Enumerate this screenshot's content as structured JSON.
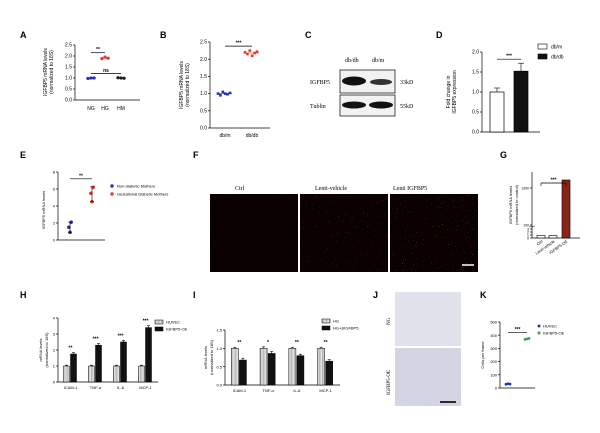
{
  "panel_labels": [
    "A",
    "B",
    "C",
    "D",
    "E",
    "F",
    "G",
    "H",
    "I",
    "J",
    "K"
  ],
  "chart_data": [
    {
      "panel": "A",
      "type": "scatter",
      "ylabel": [
        "IGFBP5 mRNA levels",
        "(normalized to 18S)"
      ],
      "categories": [
        "NG",
        "HG",
        "HM"
      ],
      "yticks": [
        "0.0",
        "0.5",
        "1.0",
        "1.5",
        "2.0",
        "2.5"
      ],
      "ylim": [
        0,
        2.5
      ],
      "series": [
        {
          "values": [
            [
              0.98,
              1.0,
              1.0
            ],
            [
              1.88,
              1.95,
              1.9
            ],
            [
              1.01,
              1.0,
              0.99
            ]
          ]
        }
      ],
      "colors": [
        "#2233bb",
        "#e23b2a",
        "#222222"
      ],
      "means": [
        1.0,
        1.91,
        1.0
      ],
      "significance": [
        {
          "label": "**",
          "from": 0,
          "to": 1,
          "y": 2.15
        },
        {
          "label": "ns",
          "from": 0,
          "to": 2,
          "y": 1.2
        }
      ]
    },
    {
      "panel": "B",
      "type": "scatter",
      "ylabel": [
        "IGFBP5 mRNA levels",
        "(normalized to 18S)"
      ],
      "categories": [
        "db/m",
        "db/db"
      ],
      "yticks": [
        "0.0",
        "0.5",
        "1.0",
        "1.5",
        "2.0",
        "2.5"
      ],
      "ylim": [
        0,
        2.5
      ],
      "series": [
        {
          "values": [
            [
              1.0,
              0.95,
              1.05,
              1.0,
              0.98,
              1.02
            ],
            [
              2.2,
              2.15,
              2.25,
              2.1,
              2.18,
              2.22
            ]
          ]
        }
      ],
      "colors": [
        "#2233bb",
        "#e23b2a"
      ],
      "means": [
        1.0,
        2.18
      ],
      "significance": [
        {
          "label": "***",
          "from": 0,
          "to": 1,
          "y": 2.38
        }
      ]
    },
    {
      "panel": "D",
      "type": "bar",
      "ylabel": [
        "Fold change in",
        "IGFBP5 expression"
      ],
      "categories": [
        "db/m",
        "db/db"
      ],
      "values": [
        1.0,
        1.52
      ],
      "errors": [
        0.1,
        0.2
      ],
      "yticks": [
        "0.0",
        "0.5",
        "1.0",
        "1.5",
        "2.0"
      ],
      "ylim": [
        0,
        2.0
      ],
      "legend": [
        "db/m",
        "db/db"
      ],
      "significance": [
        {
          "label": "***",
          "from": 0,
          "to": 1,
          "y": 1.82
        }
      ]
    },
    {
      "panel": "E",
      "type": "scatter",
      "ylabel": "IGFBP5 mRNA levels",
      "yticks": [
        "0",
        "2",
        "4",
        "6",
        "8"
      ],
      "ylim": [
        0,
        8
      ],
      "legend": [
        "Non-diabetic Mothers",
        "Gestational Diabetic Mothers"
      ],
      "series": [
        {
          "values": [
            [
              1.5,
              0.9,
              2.1
            ],
            [
              5.5,
              4.5,
              6.2
            ]
          ]
        }
      ],
      "colors": [
        "#2233bb",
        "#e23b2a"
      ],
      "means": [
        1.5,
        5.4
      ],
      "significance": [
        {
          "label": "**",
          "from": 0,
          "to": 1,
          "y": 7.2
        }
      ]
    },
    {
      "panel": "G",
      "type": "bar",
      "ylabel": [
        "IGFBP5 mRNA levels",
        "(normalized to control)"
      ],
      "categories": [
        "Ctrl",
        "Lenti-vehicle",
        "IGFBP5-OE"
      ],
      "values": [
        1,
        1,
        1500
      ],
      "yticks": [
        "0",
        "1",
        "2",
        "3",
        "100",
        "1300"
      ],
      "significance": [
        {
          "label": "***",
          "from": 0,
          "to": 2
        }
      ]
    },
    {
      "panel": "H",
      "type": "bar",
      "ylabel": [
        "mRNA levels",
        "(normalized to 18S)"
      ],
      "categories": [
        "ICAM-1",
        "TNF-α",
        "IL-6",
        "MCP-1"
      ],
      "yticks": [
        "0",
        "1",
        "2",
        "3",
        "4"
      ],
      "ylim": [
        0,
        4
      ],
      "legend": [
        "HUVEC",
        "IGFBP5-OE"
      ],
      "series": [
        {
          "name": "HUVEC",
          "values": [
            1,
            1,
            1,
            1
          ]
        },
        {
          "name": "IGFBP5-OE",
          "values": [
            1.75,
            2.3,
            2.5,
            3.4
          ]
        }
      ],
      "errors": [
        [
          0.05,
          0.05,
          0.05,
          0.05
        ],
        [
          0.08,
          0.1,
          0.1,
          0.12
        ]
      ],
      "significance": [
        "**",
        "***",
        "***",
        "***"
      ]
    },
    {
      "panel": "I",
      "type": "bar",
      "ylabel": [
        "mRNA levels",
        "(normalized to 18S)"
      ],
      "categories": [
        "ICAM-1",
        "TNF-α",
        "IL-6",
        "MCP-1"
      ],
      "yticks": [
        "0.0",
        "0.5",
        "1.0",
        "1.5"
      ],
      "ylim": [
        0,
        1.5
      ],
      "legend": [
        "HG",
        "HG+siIGFBP5"
      ],
      "series": [
        {
          "name": "HG",
          "values": [
            1,
            1,
            1,
            1
          ]
        },
        {
          "name": "HG+siIGFBP5",
          "values": [
            0.68,
            0.86,
            0.8,
            0.65
          ]
        }
      ],
      "errors": [
        [
          0.03,
          0.04,
          0.03,
          0.03
        ],
        [
          0.05,
          0.05,
          0.04,
          0.04
        ]
      ],
      "significance": [
        "**",
        "*",
        "**",
        "**"
      ]
    },
    {
      "panel": "K",
      "type": "scatter",
      "ylabel": "Cells per frame",
      "yticks": [
        "0",
        "100",
        "200",
        "300",
        "400",
        "500"
      ],
      "ylim": [
        0,
        500
      ],
      "legend": [
        "HUVEC",
        "IGFBP5-OE"
      ],
      "series": [
        {
          "values": [
            [
              28,
              32,
              30
            ],
            [
              368,
              372,
              375
            ]
          ]
        }
      ],
      "colors": [
        "#2233bb",
        "#3aa055"
      ],
      "significance": [
        {
          "label": "***",
          "from": 0,
          "to": 1,
          "y": 420
        }
      ]
    }
  ],
  "blot": {
    "columns": [
      "db/db",
      "db/m"
    ],
    "rows": [
      {
        "label": "IGFBP5",
        "size": "33kD"
      },
      {
        "label": "Tublin",
        "size": "55kD"
      }
    ]
  },
  "micrographs_F": {
    "titles": [
      "Ctrl",
      "Lenti-vehicle",
      "Lenti IGFBP5"
    ]
  },
  "micrographs_J": {
    "labels": [
      "NG",
      "IGFBP5-OE"
    ]
  }
}
